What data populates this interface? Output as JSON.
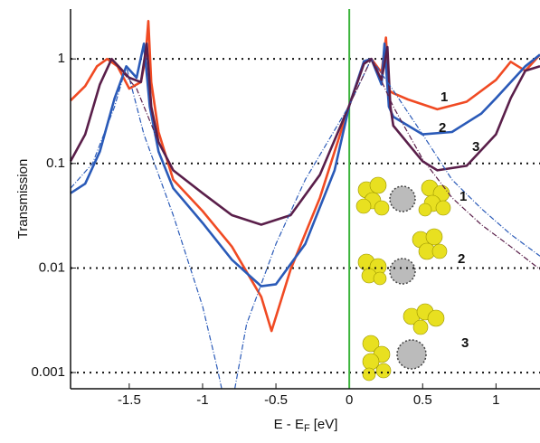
{
  "chart_data": {
    "type": "line",
    "log_y": true,
    "grid": true,
    "xlabel": {
      "main": "E - E",
      "sub": "F",
      "unit": "[eV]"
    },
    "ylabel": "Transmission",
    "xlim": [
      -1.9,
      1.3
    ],
    "ylim": [
      0.0007,
      3
    ],
    "xticks": [
      -1.5,
      -1,
      -0.5,
      0,
      0.5,
      1
    ],
    "yticks": [
      0.001,
      0.01,
      0.1,
      1
    ],
    "vline": {
      "x": 0,
      "color": "#3cb43c"
    },
    "curve_labels": [
      "1",
      "2",
      "3"
    ],
    "inset_labels": [
      "1",
      "2",
      "3"
    ],
    "series": [
      {
        "name": "1",
        "color": "#f04a23",
        "dashed": false,
        "x": [
          -1.9,
          -1.8,
          -1.72,
          -1.65,
          -1.58,
          -1.5,
          -1.42,
          -1.39,
          -1.37,
          -1.35,
          -1.3,
          -1.2,
          -1.0,
          -0.8,
          -0.6,
          -0.53,
          -0.4,
          -0.2,
          0,
          0.1,
          0.15,
          0.22,
          0.25,
          0.27,
          0.3,
          0.4,
          0.6,
          0.8,
          1.0,
          1.1,
          1.2,
          1.3
        ],
        "values": [
          0.4,
          0.55,
          0.85,
          1.0,
          0.85,
          0.52,
          0.6,
          1.0,
          2.3,
          0.6,
          0.2,
          0.07,
          0.035,
          0.016,
          0.0053,
          0.0025,
          0.0097,
          0.047,
          0.36,
          0.94,
          1.0,
          0.74,
          1.6,
          0.5,
          0.47,
          0.41,
          0.33,
          0.39,
          0.63,
          0.94,
          0.77,
          1.1
        ]
      },
      {
        "name": "2",
        "color": "#2a5ab8",
        "dashed": false,
        "x": [
          -1.9,
          -1.8,
          -1.7,
          -1.6,
          -1.52,
          -1.45,
          -1.4,
          -1.36,
          -1.3,
          -1.2,
          -1.0,
          -0.8,
          -0.6,
          -0.5,
          -0.3,
          -0.1,
          0,
          0.1,
          0.15,
          0.22,
          0.24,
          0.27,
          0.3,
          0.5,
          0.7,
          0.9,
          1.0,
          1.2,
          1.3
        ],
        "values": [
          0.052,
          0.064,
          0.13,
          0.42,
          0.85,
          0.66,
          1.4,
          0.35,
          0.13,
          0.058,
          0.027,
          0.012,
          0.0067,
          0.007,
          0.017,
          0.086,
          0.36,
          0.95,
          1.0,
          0.57,
          1.4,
          0.35,
          0.28,
          0.19,
          0.2,
          0.3,
          0.42,
          0.85,
          1.1
        ]
      },
      {
        "name": "3",
        "color": "#5a1f4a",
        "dashed": false,
        "x": [
          -1.9,
          -1.8,
          -1.7,
          -1.62,
          -1.5,
          -1.42,
          -1.38,
          -1.35,
          -1.3,
          -1.2,
          -1.0,
          -0.8,
          -0.6,
          -0.4,
          -0.2,
          0,
          0.1,
          0.15,
          0.22,
          0.26,
          0.28,
          0.3,
          0.5,
          0.6,
          0.8,
          1.0,
          1.1,
          1.2,
          1.3
        ],
        "values": [
          0.105,
          0.19,
          0.57,
          1.0,
          0.66,
          0.6,
          1.4,
          0.35,
          0.16,
          0.086,
          0.052,
          0.032,
          0.026,
          0.032,
          0.078,
          0.36,
          0.9,
          1.0,
          0.63,
          1.3,
          0.35,
          0.23,
          0.105,
          0.086,
          0.095,
          0.19,
          0.42,
          0.77,
          0.85
        ]
      },
      {
        "color": "#2a5ab8",
        "dashed": true,
        "x": [
          -1.9,
          -1.75,
          -1.6,
          -1.52,
          -1.4,
          -1.2,
          -1.0,
          -0.9,
          -0.87,
          -0.82,
          -0.78,
          -0.7,
          -0.5,
          -0.3,
          0,
          0.15,
          0.3,
          0.5,
          0.7,
          0.9,
          1.1,
          1.3
        ],
        "values": [
          0.058,
          0.1,
          0.35,
          0.85,
          0.19,
          0.032,
          0.0043,
          0.0011,
          0.0007,
          null,
          0.0007,
          0.0029,
          0.017,
          0.07,
          0.36,
          1.0,
          0.5,
          0.19,
          0.07,
          0.037,
          0.021,
          0.013
        ]
      },
      {
        "color": "#5a1f4a",
        "dashed": true,
        "x": [
          -1.9,
          -1.8,
          -1.7,
          -1.62,
          -1.45,
          -1.3,
          -1.2,
          -1.0,
          -0.8,
          -0.6,
          -0.4,
          -0.2,
          0,
          0.15,
          0.3,
          0.5,
          0.7,
          0.9,
          1.1,
          1.3
        ],
        "values": [
          0.105,
          0.19,
          0.57,
          1.0,
          0.52,
          0.16,
          0.086,
          0.052,
          0.032,
          0.026,
          0.032,
          0.078,
          0.36,
          1.0,
          0.35,
          0.11,
          0.047,
          0.026,
          0.016,
          0.0097
        ]
      }
    ]
  }
}
